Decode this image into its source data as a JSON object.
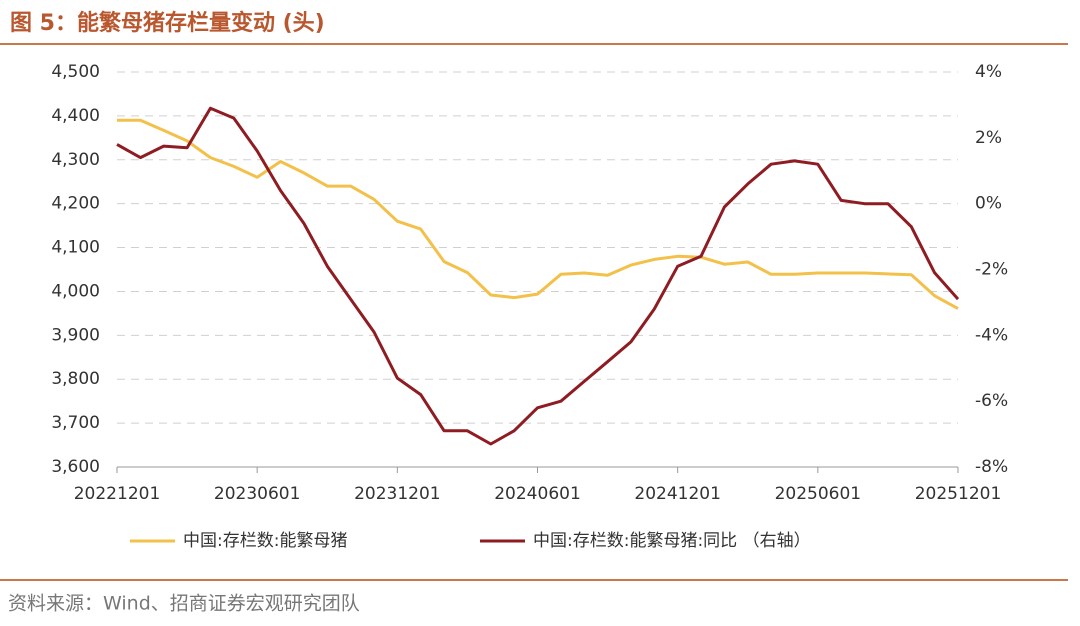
{
  "chart_data": {
    "type": "line",
    "title": "图 5：能繁母猪存栏量变动 (头)",
    "source": "资料来源：Wind、招商证券宏观研究团队",
    "categories": [
      "20221201",
      null,
      null,
      null,
      null,
      null,
      "20230601",
      null,
      null,
      null,
      null,
      null,
      "20231201",
      null,
      null,
      null,
      null,
      null,
      "20240601",
      null,
      null,
      null,
      null,
      null,
      "20241201",
      null,
      null,
      null,
      null,
      null,
      "20250601",
      null,
      null,
      null,
      null,
      null,
      "20251201"
    ],
    "series": [
      {
        "name": "中国:存栏数:能繁母猪",
        "color": "#f3c04a",
        "axis": "y",
        "values": [
          4390,
          4390,
          4367,
          4343,
          4305,
          4285,
          4260,
          4296,
          4270,
          4240,
          4240,
          4210,
          4160,
          4142,
          4068,
          4043,
          3992,
          3986,
          3994,
          4039,
          4042,
          4037,
          4060,
          4073,
          4080,
          4078,
          4062,
          4067,
          4039,
          4039,
          4042,
          4042,
          4042,
          4040,
          4038,
          3990,
          3961
        ]
      },
      {
        "name": "中国:存栏数:能繁母猪:同比 （右轴）",
        "color": "#8e1c22",
        "axis": "y2",
        "values": [
          1.8,
          1.4,
          1.75,
          1.7,
          2.9,
          2.6,
          1.6,
          0.4,
          -0.6,
          -1.9,
          -2.9,
          -3.9,
          -5.3,
          -5.8,
          -6.9,
          -6.9,
          -7.3,
          -6.9,
          -6.2,
          -6.0,
          -5.4,
          -4.8,
          -4.2,
          -3.2,
          -1.9,
          -1.6,
          -0.1,
          0.6,
          1.2,
          1.3,
          1.2,
          0.1,
          0.0,
          0.0,
          -0.7,
          -2.1,
          -2.9
        ]
      }
    ],
    "ylim": [
      3600,
      4500
    ],
    "yticks": [
      {
        "value": 3600,
        "label": "3,600"
      },
      {
        "value": 3700,
        "label": "3,700"
      },
      {
        "value": 3800,
        "label": "3,800"
      },
      {
        "value": 3900,
        "label": "3,900"
      },
      {
        "value": 4000,
        "label": "4,000"
      },
      {
        "value": 4100,
        "label": "4,100"
      },
      {
        "value": 4200,
        "label": "4,200"
      },
      {
        "value": 4300,
        "label": "4,300"
      },
      {
        "value": 4400,
        "label": "4,400"
      },
      {
        "value": 4500,
        "label": "4,500"
      }
    ],
    "y2lim": [
      -8,
      4
    ],
    "y2ticks": [
      {
        "value": -8,
        "label": "-8%"
      },
      {
        "value": -6,
        "label": "-6%"
      },
      {
        "value": -4,
        "label": "-4%"
      },
      {
        "value": -2,
        "label": "-2%"
      },
      {
        "value": 0,
        "label": "0%"
      },
      {
        "value": 2,
        "label": "2%"
      },
      {
        "value": 4,
        "label": "4%"
      }
    ],
    "grid": true,
    "legend": "bottom"
  }
}
